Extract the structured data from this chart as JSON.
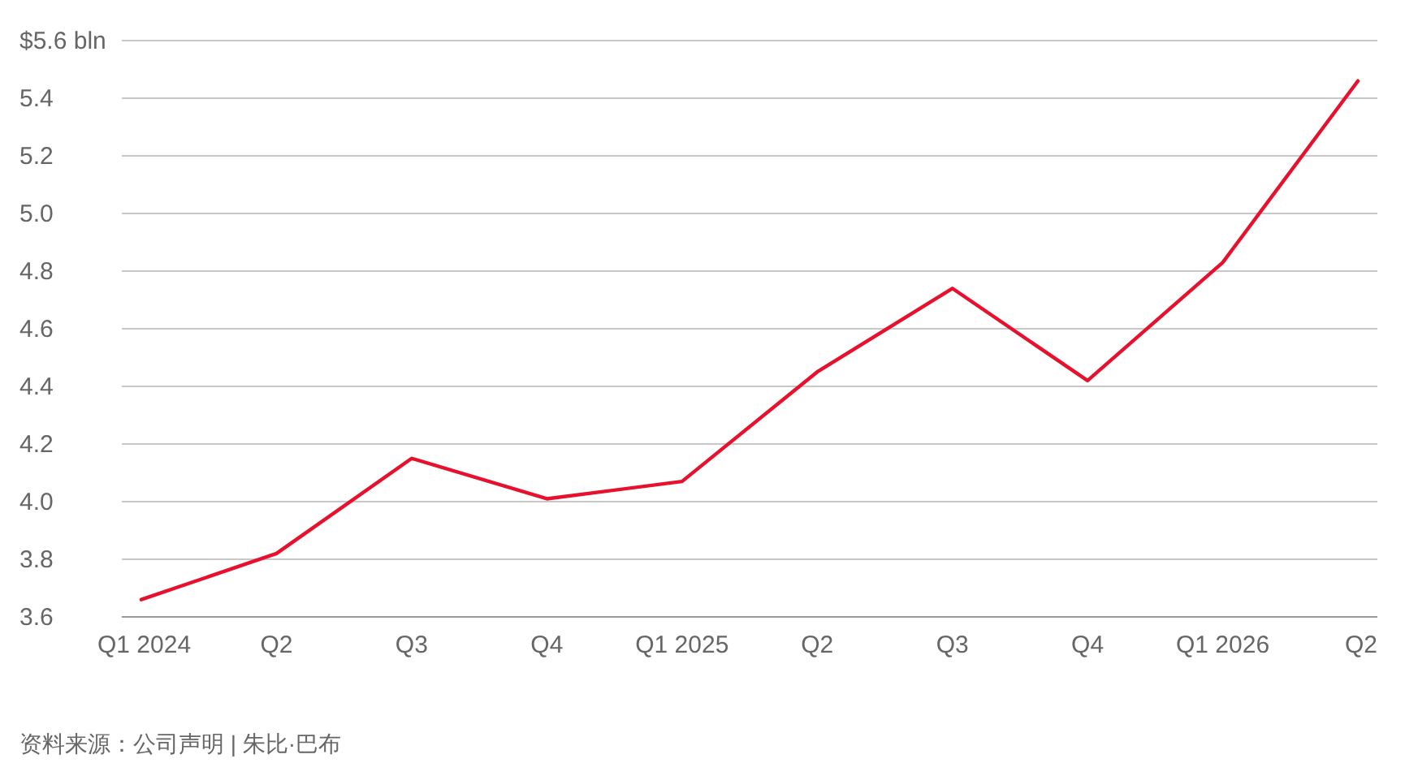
{
  "chart_data": {
    "type": "line",
    "categories": [
      "Q1 2024",
      "Q2",
      "Q3",
      "Q4",
      "Q1 2025",
      "Q2",
      "Q3",
      "Q4",
      "Q1 2026",
      "Q2"
    ],
    "series": [
      {
        "color": "#e8112d",
        "values": [
          3.66,
          3.82,
          4.15,
          4.01,
          4.07,
          4.45,
          4.74,
          4.42,
          4.83,
          5.46
        ]
      }
    ],
    "ylim": [
      3.6,
      5.6
    ],
    "yticks": [
      3.6,
      3.8,
      {
        "value": 4,
        "label": "4.0"
      },
      4.2,
      4.4,
      4.6,
      4.8,
      {
        "value": 5,
        "label": "5.0"
      },
      5.2,
      5.4,
      {
        "value": 5.6,
        "label": "$5.6 bln"
      }
    ],
    "grid": "y",
    "line_style": "solid",
    "annotations": [
      "资料来源：公司声明 | 朱比·巴布"
    ]
  }
}
